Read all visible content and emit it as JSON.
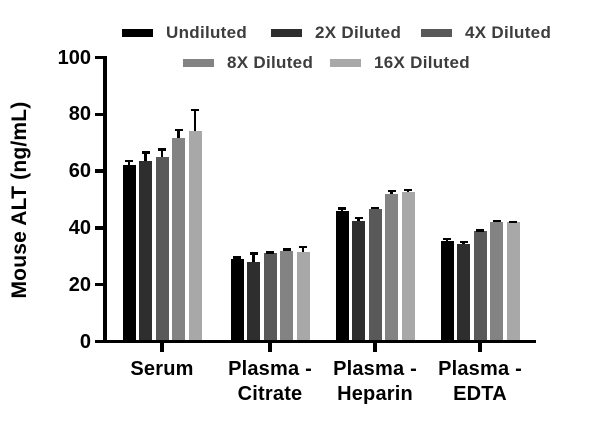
{
  "chart_data": {
    "type": "bar",
    "title": "",
    "ylabel": "Mouse ALT (ng/mL)",
    "xlabel": "",
    "categories": [
      "Serum",
      "Plasma - Citrate",
      "Plasma - Heparin",
      "Plasma - EDTA"
    ],
    "category_label_lines": [
      [
        "Serum"
      ],
      [
        "Plasma -",
        "Citrate"
      ],
      [
        "Plasma -",
        "Heparin"
      ],
      [
        "Plasma -",
        "EDTA"
      ]
    ],
    "series": [
      {
        "name": "Undiluted",
        "color": "#000000",
        "values": [
          62,
          29,
          46,
          35.5
        ],
        "errors_upper": [
          2,
          1,
          1.2,
          1
        ]
      },
      {
        "name": "2X Diluted",
        "color": "#2e2e2e",
        "values": [
          63.5,
          28,
          42.5,
          34.5
        ],
        "errors_upper": [
          3.5,
          3.5,
          1.5,
          1
        ]
      },
      {
        "name": "4X Diluted",
        "color": "#595959",
        "values": [
          65,
          31,
          46.5,
          39
        ],
        "errors_upper": [
          3,
          0.8,
          0.9,
          0.6
        ]
      },
      {
        "name": "8X Diluted",
        "color": "#838383",
        "values": [
          71.5,
          32,
          52,
          42
        ],
        "errors_upper": [
          3.5,
          0.8,
          1.4,
          0.8
        ]
      },
      {
        "name": "16X Diluted",
        "color": "#a8a8a8",
        "values": [
          74,
          31.5,
          52.5,
          42
        ],
        "errors_upper": [
          8,
          2.2,
          1.2,
          0.5
        ]
      }
    ],
    "ylim": [
      0,
      100
    ],
    "y_ticks": [
      0,
      20,
      40,
      60,
      80,
      100
    ],
    "grid": false,
    "error_bars": "upper-only",
    "legend_position": "top",
    "legend_rows": [
      [
        "Undiluted",
        "2X Diluted",
        "4X Diluted"
      ],
      [
        "8X Diluted",
        "16X Diluted"
      ]
    ],
    "axis_color": "#000000",
    "background_color": "#ffffff"
  }
}
